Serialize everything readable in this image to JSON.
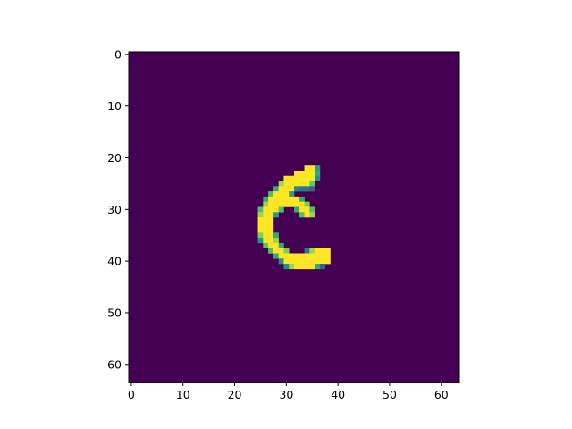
{
  "chart_data": {
    "type": "heatmap",
    "title": "",
    "xlabel": "",
    "ylabel": "",
    "colormap": "viridis",
    "grid": false,
    "image_size": [
      64,
      64
    ],
    "xlim": [
      -0.5,
      63.5
    ],
    "ylim": [
      63.5,
      -0.5
    ],
    "x_ticks": [
      0,
      10,
      20,
      30,
      40,
      50,
      60
    ],
    "y_ticks": [
      0,
      10,
      20,
      30,
      40,
      50,
      60
    ],
    "x_tick_labels": [
      "0",
      "10",
      "20",
      "30",
      "40",
      "50",
      "60"
    ],
    "y_tick_labels": [
      "0",
      "10",
      "20",
      "30",
      "40",
      "50",
      "60"
    ],
    "background_value": 0,
    "colors": {
      "background": "#440154",
      "foreground": "#fde725",
      "edge_mid": "#21918c",
      "edge_low": "#3b528b"
    },
    "bright_pixels": [
      [
        22,
        34,
        1
      ],
      [
        22,
        35,
        1
      ],
      [
        22,
        36,
        0.55
      ],
      [
        23,
        32,
        1
      ],
      [
        23,
        33,
        1
      ],
      [
        23,
        34,
        1
      ],
      [
        23,
        35,
        1
      ],
      [
        23,
        36,
        0.6
      ],
      [
        24,
        30,
        1
      ],
      [
        24,
        31,
        1
      ],
      [
        24,
        32,
        1
      ],
      [
        24,
        33,
        1
      ],
      [
        24,
        34,
        1
      ],
      [
        24,
        35,
        1
      ],
      [
        24,
        36,
        0.5
      ],
      [
        25,
        29,
        0.85
      ],
      [
        25,
        30,
        1
      ],
      [
        25,
        31,
        1
      ],
      [
        25,
        32,
        1
      ],
      [
        25,
        33,
        1
      ],
      [
        25,
        34,
        1
      ],
      [
        25,
        35,
        0.75
      ],
      [
        26,
        28,
        0.6
      ],
      [
        26,
        29,
        1
      ],
      [
        26,
        30,
        1
      ],
      [
        26,
        31,
        1
      ],
      [
        26,
        32,
        0.5
      ],
      [
        26,
        33,
        0.4
      ],
      [
        26,
        34,
        0.4
      ],
      [
        26,
        35,
        0.3
      ],
      [
        27,
        27,
        0.7
      ],
      [
        27,
        28,
        1
      ],
      [
        27,
        29,
        1
      ],
      [
        27,
        30,
        1
      ],
      [
        27,
        31,
        0.55
      ],
      [
        28,
        26,
        0.6
      ],
      [
        28,
        27,
        1
      ],
      [
        28,
        28,
        1
      ],
      [
        28,
        29,
        1
      ],
      [
        28,
        30,
        1
      ],
      [
        28,
        31,
        1
      ],
      [
        28,
        32,
        1
      ],
      [
        28,
        33,
        0.6
      ],
      [
        29,
        26,
        0.85
      ],
      [
        29,
        27,
        1
      ],
      [
        29,
        28,
        1
      ],
      [
        29,
        29,
        1
      ],
      [
        29,
        30,
        1
      ],
      [
        29,
        31,
        1
      ],
      [
        29,
        32,
        1
      ],
      [
        29,
        33,
        1
      ],
      [
        29,
        34,
        0.8
      ],
      [
        30,
        25,
        0.7
      ],
      [
        30,
        26,
        1
      ],
      [
        30,
        27,
        1
      ],
      [
        30,
        28,
        1
      ],
      [
        30,
        29,
        0.7
      ],
      [
        30,
        32,
        0.6
      ],
      [
        30,
        33,
        1
      ],
      [
        30,
        34,
        1
      ],
      [
        30,
        35,
        0.7
      ],
      [
        31,
        25,
        0.85
      ],
      [
        31,
        26,
        1
      ],
      [
        31,
        27,
        1
      ],
      [
        31,
        28,
        0.55
      ],
      [
        31,
        33,
        0.7
      ],
      [
        31,
        34,
        1
      ],
      [
        31,
        35,
        0.85
      ],
      [
        32,
        25,
        1
      ],
      [
        32,
        26,
        1
      ],
      [
        32,
        27,
        1
      ],
      [
        33,
        25,
        1
      ],
      [
        33,
        26,
        1
      ],
      [
        33,
        27,
        1
      ],
      [
        34,
        25,
        1
      ],
      [
        34,
        26,
        1
      ],
      [
        34,
        27,
        1
      ],
      [
        35,
        25,
        0.8
      ],
      [
        35,
        26,
        1
      ],
      [
        35,
        27,
        1
      ],
      [
        35,
        28,
        0.6
      ],
      [
        36,
        25,
        0.5
      ],
      [
        36,
        26,
        1
      ],
      [
        36,
        27,
        1
      ],
      [
        36,
        28,
        0.85
      ],
      [
        37,
        26,
        0.75
      ],
      [
        37,
        27,
        1
      ],
      [
        37,
        28,
        1
      ],
      [
        37,
        29,
        0.6
      ],
      [
        38,
        27,
        0.7
      ],
      [
        38,
        28,
        1
      ],
      [
        38,
        29,
        1
      ],
      [
        38,
        30,
        0.8
      ],
      [
        38,
        34,
        0.4
      ],
      [
        38,
        35,
        0.85
      ],
      [
        38,
        36,
        1
      ],
      [
        38,
        37,
        1
      ],
      [
        38,
        38,
        1
      ],
      [
        39,
        28,
        0.6
      ],
      [
        39,
        29,
        1
      ],
      [
        39,
        30,
        1
      ],
      [
        39,
        31,
        1
      ],
      [
        39,
        32,
        1
      ],
      [
        39,
        33,
        1
      ],
      [
        39,
        34,
        1
      ],
      [
        39,
        35,
        1
      ],
      [
        39,
        36,
        1
      ],
      [
        39,
        37,
        1
      ],
      [
        39,
        38,
        1
      ],
      [
        40,
        29,
        0.5
      ],
      [
        40,
        30,
        1
      ],
      [
        40,
        31,
        1
      ],
      [
        40,
        32,
        1
      ],
      [
        40,
        33,
        1
      ],
      [
        40,
        34,
        1
      ],
      [
        40,
        35,
        1
      ],
      [
        40,
        36,
        1
      ],
      [
        40,
        37,
        1
      ],
      [
        40,
        38,
        1
      ],
      [
        41,
        30,
        0.5
      ],
      [
        41,
        31,
        0.85
      ],
      [
        41,
        32,
        1
      ],
      [
        41,
        33,
        1
      ],
      [
        41,
        34,
        1
      ],
      [
        41,
        35,
        1
      ],
      [
        41,
        36,
        0.6
      ],
      [
        41,
        37,
        0.3
      ]
    ]
  }
}
